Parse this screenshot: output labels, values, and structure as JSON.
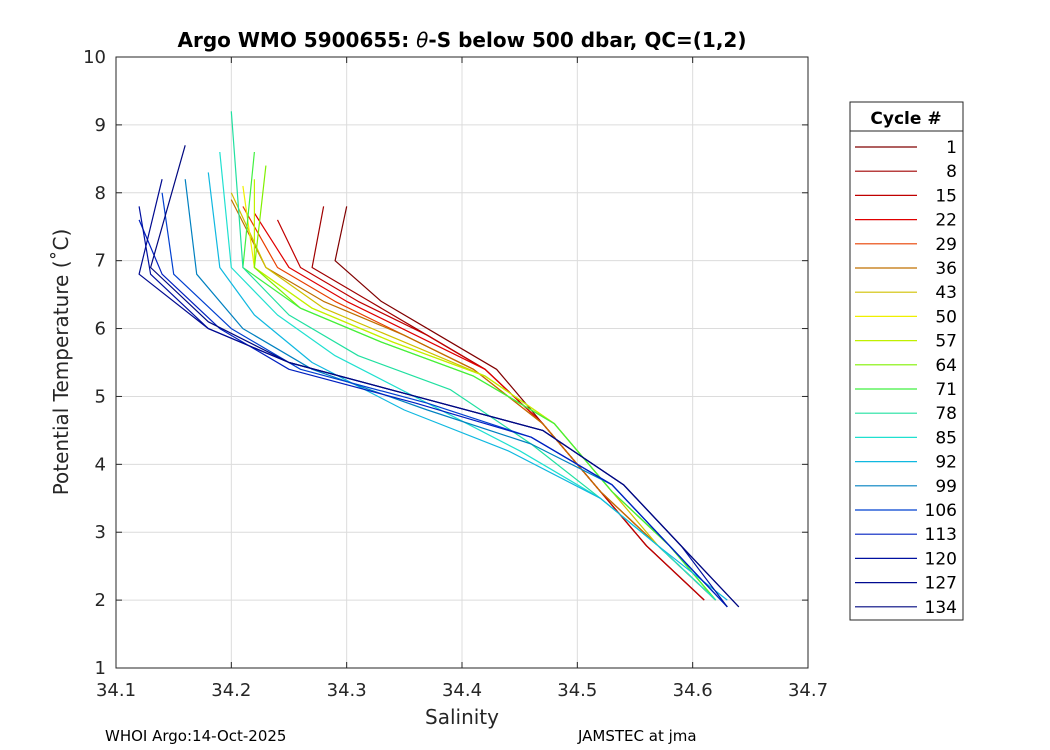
{
  "chart_data": {
    "type": "line",
    "title_prefix": "Argo WMO 5900655: ",
    "title_theta": "θ",
    "title_suffix": "-S below 500 dbar,  QC=(1,2)",
    "xlabel": "Salinity",
    "ylabel": "Potential Temperature (˚C)",
    "xlim": [
      34.1,
      34.7
    ],
    "ylim": [
      1,
      10
    ],
    "xticks": [
      "34.1",
      "34.2",
      "34.3",
      "34.4",
      "34.5",
      "34.6",
      "34.7"
    ],
    "yticks": [
      "1",
      "2",
      "3",
      "4",
      "5",
      "6",
      "7",
      "8",
      "9",
      "10"
    ],
    "grid": true,
    "legend_title": "Cycle #",
    "legend_position": "right-outside",
    "series": [
      {
        "name": "1",
        "color": "#800000",
        "x": [
          34.61,
          34.56,
          34.52,
          34.47,
          34.43,
          34.38,
          34.33,
          34.29,
          34.3
        ],
        "y": [
          2.0,
          2.8,
          3.6,
          4.6,
          5.4,
          5.9,
          6.4,
          7.0,
          7.8
        ]
      },
      {
        "name": "8",
        "color": "#a00000",
        "x": [
          34.61,
          34.56,
          34.52,
          34.47,
          34.42,
          34.37,
          34.32,
          34.27,
          34.28
        ],
        "y": [
          2.0,
          2.8,
          3.6,
          4.6,
          5.4,
          5.9,
          6.4,
          6.9,
          7.8
        ]
      },
      {
        "name": "15",
        "color": "#c00000",
        "x": [
          34.61,
          34.56,
          34.52,
          34.47,
          34.42,
          34.37,
          34.31,
          34.26,
          34.24
        ],
        "y": [
          2.0,
          2.8,
          3.6,
          4.6,
          5.4,
          5.9,
          6.4,
          6.9,
          7.6
        ]
      },
      {
        "name": "22",
        "color": "#e00000",
        "x": [
          34.62,
          34.57,
          34.52,
          34.47,
          34.42,
          34.36,
          34.3,
          34.25,
          34.22
        ],
        "y": [
          2.0,
          2.8,
          3.6,
          4.6,
          5.4,
          5.9,
          6.4,
          6.9,
          7.7
        ]
      },
      {
        "name": "29",
        "color": "#e84000",
        "x": [
          34.62,
          34.57,
          34.52,
          34.47,
          34.41,
          34.35,
          34.29,
          34.24,
          34.21
        ],
        "y": [
          2.0,
          2.8,
          3.6,
          4.6,
          5.4,
          5.9,
          6.4,
          6.9,
          7.8
        ]
      },
      {
        "name": "36",
        "color": "#c07000",
        "x": [
          34.62,
          34.57,
          34.52,
          34.47,
          34.41,
          34.35,
          34.28,
          34.23,
          34.2
        ],
        "y": [
          2.0,
          2.8,
          3.6,
          4.6,
          5.4,
          5.9,
          6.4,
          6.9,
          7.9
        ]
      },
      {
        "name": "43",
        "color": "#d0c000",
        "x": [
          34.62,
          34.57,
          34.53,
          34.48,
          34.42,
          34.35,
          34.28,
          34.23,
          34.2
        ],
        "y": [
          2.0,
          2.8,
          3.6,
          4.6,
          5.3,
          5.8,
          6.3,
          6.9,
          8.0
        ]
      },
      {
        "name": "50",
        "color": "#f0f000",
        "x": [
          34.62,
          34.58,
          34.53,
          34.48,
          34.42,
          34.34,
          34.27,
          34.22,
          34.21
        ],
        "y": [
          2.0,
          2.8,
          3.6,
          4.6,
          5.3,
          5.8,
          6.3,
          6.9,
          8.1
        ]
      },
      {
        "name": "57",
        "color": "#c0f000",
        "x": [
          34.62,
          34.58,
          34.53,
          34.48,
          34.42,
          34.34,
          34.27,
          34.22,
          34.22
        ],
        "y": [
          2.0,
          2.8,
          3.6,
          4.6,
          5.3,
          5.8,
          6.3,
          6.9,
          8.2
        ]
      },
      {
        "name": "64",
        "color": "#80f000",
        "x": [
          34.62,
          34.58,
          34.53,
          34.48,
          34.41,
          34.33,
          34.26,
          34.22,
          34.23
        ],
        "y": [
          2.0,
          2.8,
          3.6,
          4.6,
          5.3,
          5.8,
          6.3,
          6.9,
          8.4
        ]
      },
      {
        "name": "71",
        "color": "#40f040",
        "x": [
          34.62,
          34.58,
          34.53,
          34.48,
          34.41,
          34.33,
          34.26,
          34.21,
          34.22
        ],
        "y": [
          2.0,
          2.8,
          3.6,
          4.6,
          5.3,
          5.8,
          6.3,
          6.9,
          8.6
        ]
      },
      {
        "name": "78",
        "color": "#20e0a0",
        "x": [
          34.62,
          34.57,
          34.52,
          34.46,
          34.39,
          34.31,
          34.25,
          34.21,
          34.2
        ],
        "y": [
          2.0,
          2.8,
          3.5,
          4.3,
          5.1,
          5.6,
          6.2,
          6.9,
          9.2
        ]
      },
      {
        "name": "85",
        "color": "#20e0d0",
        "x": [
          34.62,
          34.57,
          34.52,
          34.45,
          34.37,
          34.29,
          34.24,
          34.2,
          34.19
        ],
        "y": [
          2.0,
          2.8,
          3.5,
          4.2,
          4.9,
          5.6,
          6.2,
          6.9,
          8.6
        ]
      },
      {
        "name": "92",
        "color": "#10b8e0",
        "x": [
          34.63,
          34.57,
          34.52,
          34.44,
          34.35,
          34.27,
          34.22,
          34.19,
          34.18
        ],
        "y": [
          2.0,
          2.8,
          3.5,
          4.2,
          4.8,
          5.5,
          6.2,
          6.9,
          8.3
        ]
      },
      {
        "name": "99",
        "color": "#0080c0",
        "x": [
          34.63,
          34.58,
          34.53,
          34.46,
          34.37,
          34.27,
          34.21,
          34.17,
          34.16
        ],
        "y": [
          1.9,
          2.8,
          3.7,
          4.3,
          4.8,
          5.4,
          6.0,
          6.8,
          8.2
        ]
      },
      {
        "name": "106",
        "color": "#0040d0",
        "x": [
          34.63,
          34.58,
          34.53,
          34.46,
          34.37,
          34.26,
          34.2,
          34.15,
          34.14
        ],
        "y": [
          1.9,
          2.8,
          3.7,
          4.4,
          4.9,
          5.4,
          6.0,
          6.8,
          8.0
        ]
      },
      {
        "name": "113",
        "color": "#0020c0",
        "x": [
          34.63,
          34.58,
          34.53,
          34.46,
          34.36,
          34.25,
          34.19,
          34.14,
          34.12
        ],
        "y": [
          1.9,
          2.8,
          3.7,
          4.4,
          4.9,
          5.4,
          6.0,
          6.8,
          7.6
        ]
      },
      {
        "name": "120",
        "color": "#0010a0",
        "x": [
          34.63,
          34.59,
          34.54,
          34.47,
          34.36,
          34.25,
          34.18,
          34.13,
          34.12
        ],
        "y": [
          1.9,
          2.8,
          3.7,
          4.5,
          5.0,
          5.5,
          6.0,
          6.8,
          7.8
        ]
      },
      {
        "name": "127",
        "color": "#000a90",
        "x": [
          34.64,
          34.59,
          34.54,
          34.47,
          34.36,
          34.25,
          34.18,
          34.12,
          34.14
        ],
        "y": [
          1.9,
          2.8,
          3.7,
          4.5,
          5.0,
          5.5,
          6.0,
          6.8,
          8.2
        ]
      },
      {
        "name": "134",
        "color": "#000880",
        "x": [
          34.64,
          34.59,
          34.54,
          34.47,
          34.36,
          34.25,
          34.18,
          34.13,
          34.16
        ],
        "y": [
          1.9,
          2.8,
          3.7,
          4.5,
          5.0,
          5.5,
          6.1,
          6.9,
          8.7
        ]
      }
    ]
  },
  "footer": {
    "left": "WHOI Argo:14-Oct-2025",
    "right": "JAMSTEC at jma"
  }
}
